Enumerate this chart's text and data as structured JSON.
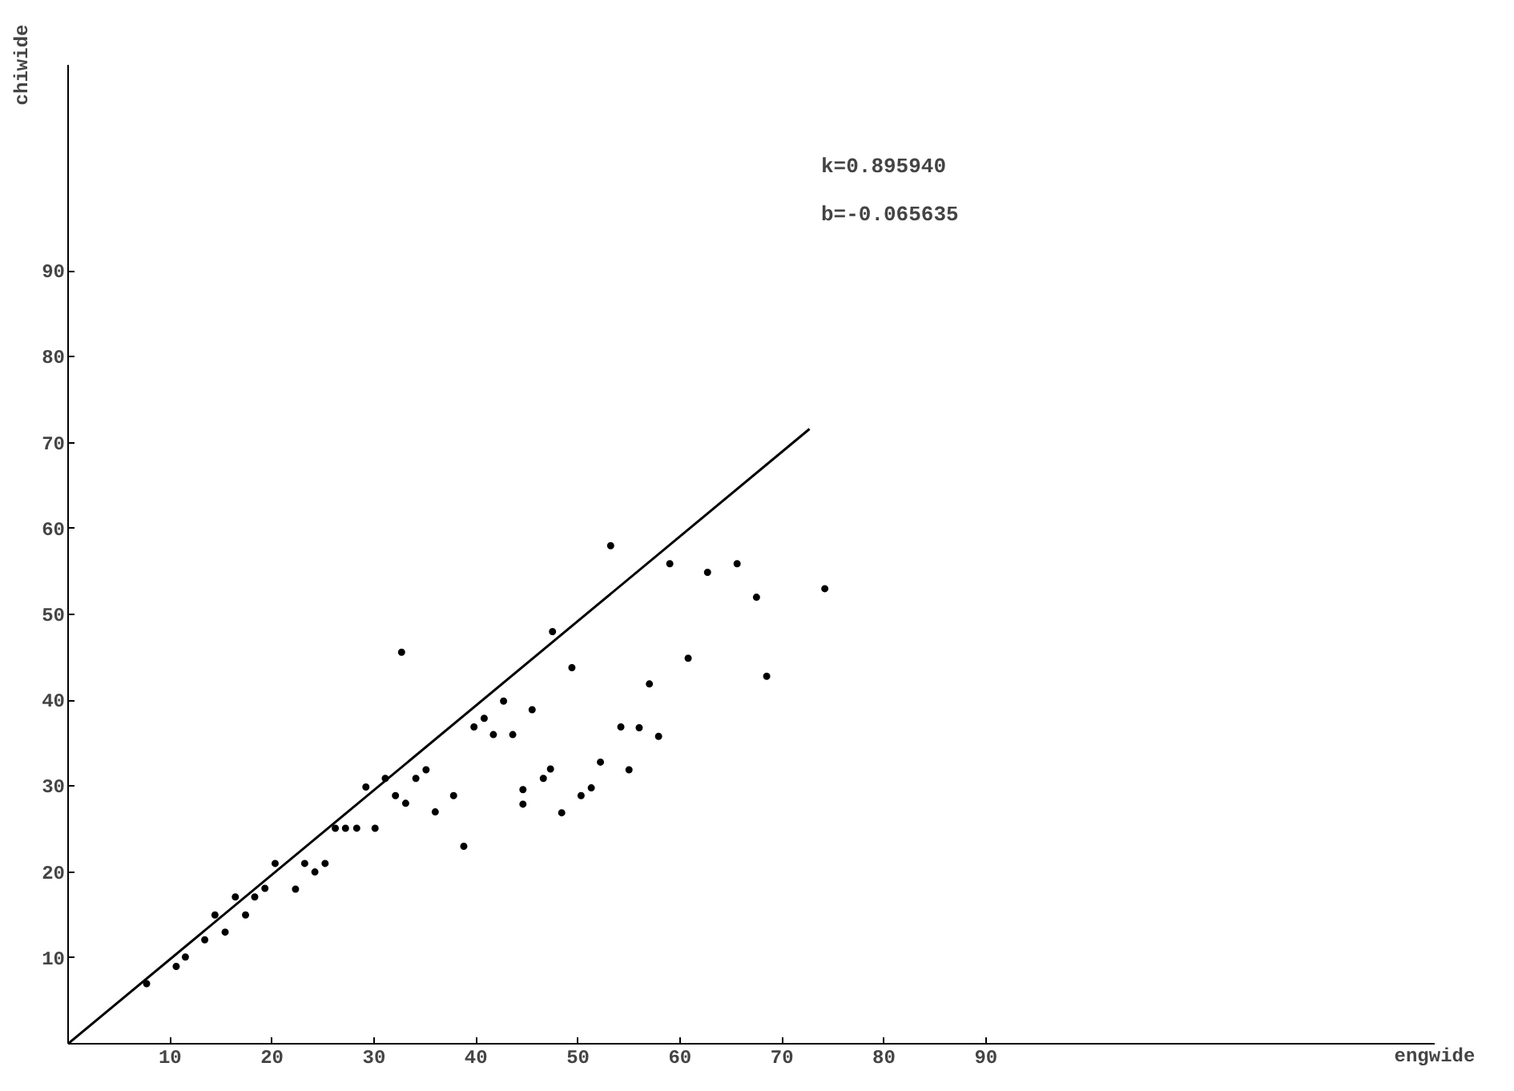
{
  "chart_data": {
    "type": "scatter",
    "xlabel": "engwide",
    "ylabel": "chiwide",
    "xlim": [
      0,
      134
    ],
    "ylim": [
      0,
      114
    ],
    "xticks": [
      10,
      20,
      30,
      40,
      50,
      60,
      70,
      80,
      90
    ],
    "yticks": [
      10,
      20,
      30,
      40,
      50,
      60,
      70,
      80,
      90
    ],
    "grid": false,
    "annotations": [
      "k=0.895940",
      "b=-0.065635"
    ],
    "series": [
      {
        "marker": "circle",
        "color": "#000000",
        "x": [
          7.7,
          10.6,
          11.5,
          13.4,
          15.4,
          14.4,
          17.4,
          16.4,
          18.3,
          19.3,
          22.3,
          20.3,
          23.2,
          24.2,
          25.2,
          26.2,
          27.2,
          28.3,
          30.1,
          29.2,
          31.1,
          32.1,
          33.1,
          34.1,
          35.1,
          36.0,
          37.8,
          38.8,
          39.8,
          40.8,
          41.7,
          53.2,
          59.0,
          62.7,
          65.6,
          67.5,
          74.2,
          47.5,
          49.4,
          60.8,
          57.0,
          68.5,
          42.7,
          43.6,
          45.5,
          54.2,
          56.0,
          57.9,
          52.2,
          55.0,
          46.6,
          47.3,
          44.6,
          44.6,
          48.4,
          50.3,
          51.3,
          32.7
        ],
        "values": [
          7.0,
          9.0,
          10.1,
          12.1,
          13.0,
          15.0,
          15.0,
          17.1,
          17.1,
          18.1,
          18.0,
          21.0,
          21.0,
          20.0,
          21.0,
          25.1,
          25.1,
          25.1,
          25.1,
          29.9,
          30.9,
          28.9,
          28.0,
          30.9,
          31.9,
          27.0,
          28.9,
          23.0,
          36.9,
          37.9,
          36.0,
          58.0,
          55.9,
          54.9,
          55.9,
          52.0,
          53.0,
          48.0,
          43.8,
          44.9,
          41.9,
          42.8,
          39.9,
          36.0,
          38.9,
          36.9,
          36.8,
          35.8,
          32.8,
          31.9,
          30.9,
          32.0,
          27.9,
          29.6,
          26.9,
          28.9,
          29.8,
          45.6
        ]
      },
      {
        "type": "line",
        "color": "#000000",
        "x": [
          0,
          72.7
        ],
        "values": [
          0,
          71.6
        ]
      }
    ]
  }
}
